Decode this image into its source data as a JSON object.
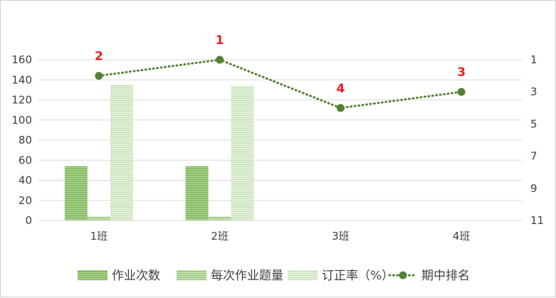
{
  "chart_data": {
    "type": "bar",
    "categories": [
      "1班",
      "2班",
      "3班",
      "4班"
    ],
    "series": [
      {
        "name": "作业次数",
        "type": "bar",
        "axis": "left",
        "values": [
          54,
          54,
          null,
          null
        ],
        "color": "#a9d18e",
        "pattern": "horizontal-lines"
      },
      {
        "name": "每次作业题量",
        "type": "bar",
        "axis": "left",
        "values": [
          4,
          4,
          null,
          null
        ],
        "color": "#c5e0b4",
        "pattern": "horizontal-lines"
      },
      {
        "name": "订正率（%）",
        "type": "bar",
        "axis": "left",
        "values": [
          135,
          134,
          null,
          null
        ],
        "color": "#e2efda",
        "pattern": "horizontal-lines"
      },
      {
        "name": "期中排名",
        "type": "line",
        "axis": "right",
        "values": [
          2,
          1,
          4,
          3
        ],
        "color": "#548235",
        "line_style": "dotted",
        "marker": "circle"
      }
    ],
    "data_labels": [
      "2",
      "1",
      "4",
      "3"
    ],
    "left_axis": {
      "min": 0,
      "max": 160,
      "ticks": [
        0,
        20,
        40,
        60,
        80,
        100,
        120,
        140,
        160
      ]
    },
    "right_axis": {
      "min": 1,
      "max": 11,
      "reversed": true,
      "ticks": [
        1,
        3,
        5,
        7,
        9,
        11
      ]
    },
    "grid": true,
    "legend_position": "bottom",
    "label_color": "#ee1c1c",
    "gridline_color": "#d9d9d9"
  }
}
